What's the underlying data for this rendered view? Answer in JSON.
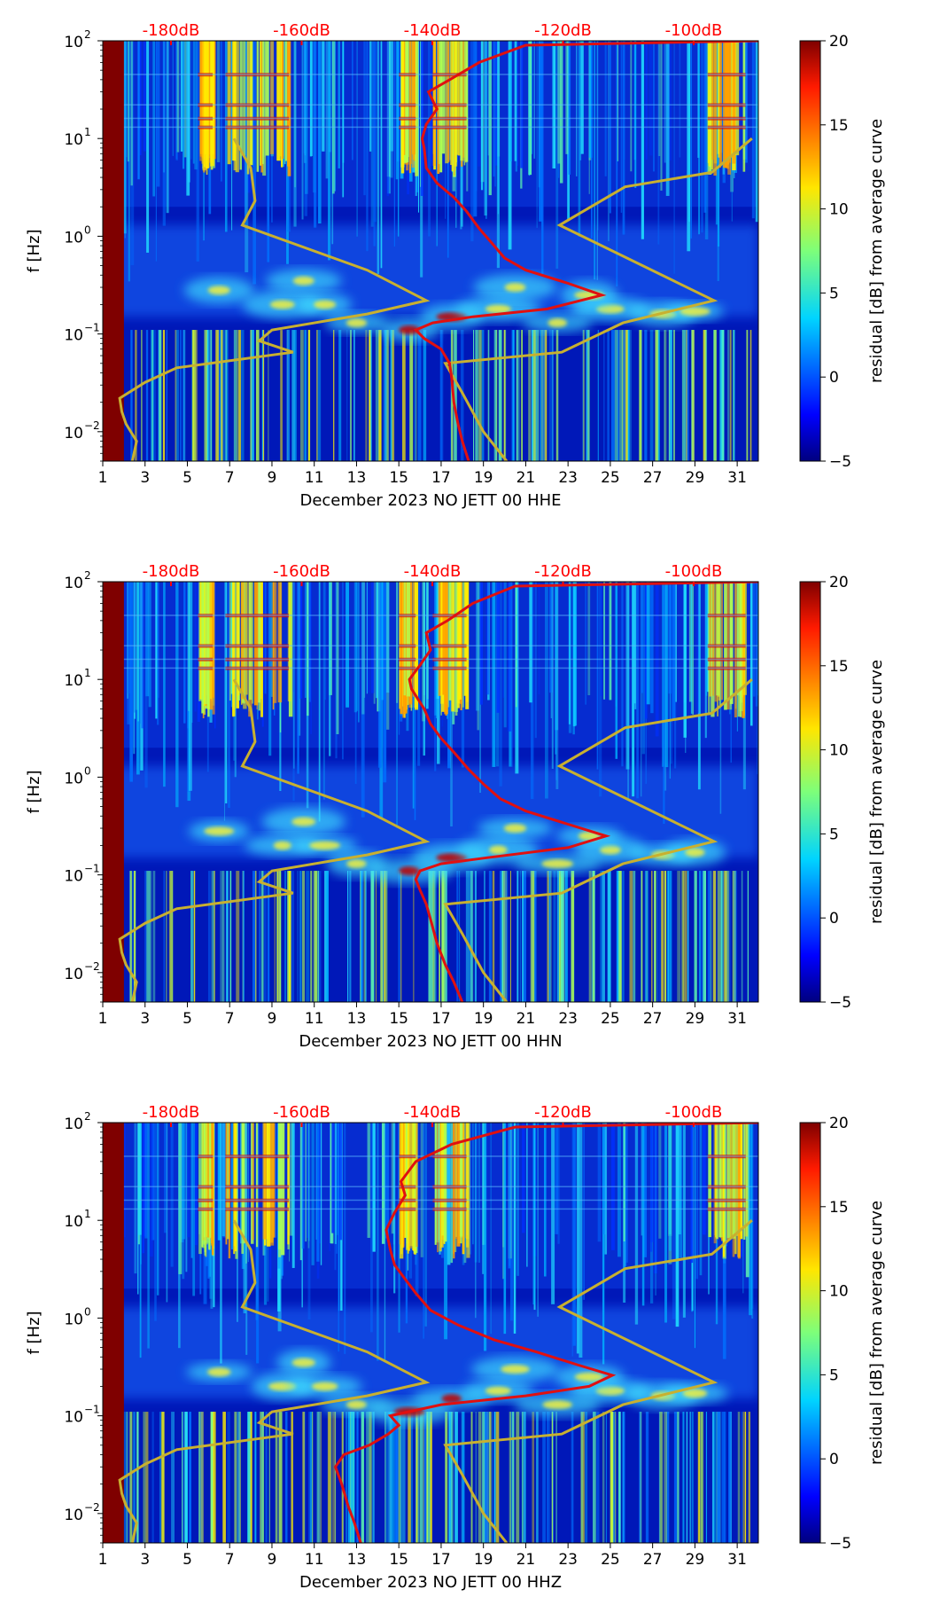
{
  "colors": {
    "db_label": "#ff0000",
    "red_curve": "#e01010",
    "model_curve": "#c8b030",
    "left_band": "#7f0000"
  },
  "chart_data": [
    {
      "type": "heatmap",
      "xlabel": "December 2023 NO JETT 00 HHE",
      "ylabel": "f [Hz]",
      "x_ticks": [
        "1",
        "3",
        "5",
        "7",
        "9",
        "11",
        "13",
        "15",
        "17",
        "19",
        "21",
        "23",
        "25",
        "27",
        "29",
        "31"
      ],
      "xlim": [
        1,
        32
      ],
      "y_ticks": [
        "10",
        "10",
        "10",
        "10",
        "10"
      ],
      "y_tick_exponents": [
        "2",
        "1",
        "0",
        "−1",
        "−2"
      ],
      "ylim": [
        0.005,
        100
      ],
      "y_scale": "log",
      "top_labels": [
        "-180dB",
        "-160dB",
        "-140dB",
        "-120dB",
        "-100dB"
      ],
      "colorbar": {
        "label": "residual [dB] from average curve",
        "ticks": [
          "20",
          "15",
          "10",
          "5",
          "0",
          "−5"
        ],
        "range": [
          -5,
          20
        ]
      },
      "red_curve": [
        [
          18.3,
          0.005
        ],
        [
          18.0,
          0.008
        ],
        [
          17.8,
          0.012
        ],
        [
          17.6,
          0.02
        ],
        [
          17.5,
          0.035
        ],
        [
          17.4,
          0.05
        ],
        [
          17.0,
          0.07
        ],
        [
          16.2,
          0.09
        ],
        [
          15.8,
          0.11
        ],
        [
          16.6,
          0.13
        ],
        [
          18.5,
          0.15
        ],
        [
          22.0,
          0.18
        ],
        [
          24.6,
          0.25
        ],
        [
          23.0,
          0.33
        ],
        [
          21.0,
          0.45
        ],
        [
          20.0,
          0.6
        ],
        [
          19.4,
          0.85
        ],
        [
          18.8,
          1.2
        ],
        [
          18.2,
          1.8
        ],
        [
          17.6,
          2.5
        ],
        [
          16.8,
          3.5
        ],
        [
          16.3,
          5
        ],
        [
          16.2,
          8
        ],
        [
          16.1,
          10
        ],
        [
          16.3,
          14
        ],
        [
          16.8,
          20
        ],
        [
          16.4,
          30
        ],
        [
          17.4,
          40
        ],
        [
          18.8,
          60
        ],
        [
          21.0,
          90
        ],
        [
          32.0,
          100
        ]
      ],
      "model_curve": [
        [
          20.1,
          0.005
        ],
        [
          19.0,
          0.01
        ],
        [
          18.0,
          0.025
        ],
        [
          17.2,
          0.05
        ],
        [
          22.7,
          0.065
        ],
        [
          25.6,
          0.13
        ],
        [
          29.9,
          0.22
        ],
        [
          22.6,
          1.3
        ],
        [
          25.7,
          3.2
        ],
        [
          29.8,
          4.5
        ],
        [
          31.7,
          10
        ]
      ],
      "model_curve_left": [
        [
          2.4,
          0.005
        ],
        [
          2.6,
          0.008
        ],
        [
          2.1,
          0.012
        ],
        [
          1.9,
          0.016
        ],
        [
          1.8,
          0.022
        ],
        [
          3.0,
          0.032
        ],
        [
          4.5,
          0.045
        ],
        [
          10.0,
          0.065
        ],
        [
          8.4,
          0.085
        ],
        [
          9.0,
          0.11
        ],
        [
          13.5,
          0.16
        ],
        [
          16.3,
          0.22
        ],
        [
          13.5,
          0.45
        ],
        [
          7.6,
          1.3
        ],
        [
          8.2,
          2.3
        ],
        [
          8.0,
          5
        ],
        [
          7.2,
          10
        ]
      ]
    },
    {
      "type": "heatmap",
      "xlabel": "December 2023 NO JETT 00 HHN",
      "ylabel": "f [Hz]",
      "x_ticks": [
        "1",
        "3",
        "5",
        "7",
        "9",
        "11",
        "13",
        "15",
        "17",
        "19",
        "21",
        "23",
        "25",
        "27",
        "29",
        "31"
      ],
      "xlim": [
        1,
        32
      ],
      "y_ticks": [
        "10",
        "10",
        "10",
        "10",
        "10"
      ],
      "y_tick_exponents": [
        "2",
        "1",
        "0",
        "−1",
        "−2"
      ],
      "ylim": [
        0.005,
        100
      ],
      "y_scale": "log",
      "top_labels": [
        "-180dB",
        "-160dB",
        "-140dB",
        "-120dB",
        "-100dB"
      ],
      "colorbar": {
        "label": "residual [dB] from average curve",
        "ticks": [
          "20",
          "15",
          "10",
          "5",
          "0",
          "−5"
        ],
        "range": [
          -5,
          20
        ]
      },
      "red_curve": [
        [
          18.0,
          0.005
        ],
        [
          17.6,
          0.008
        ],
        [
          17.2,
          0.012
        ],
        [
          16.8,
          0.02
        ],
        [
          16.5,
          0.035
        ],
        [
          16.3,
          0.05
        ],
        [
          16.0,
          0.07
        ],
        [
          15.8,
          0.09
        ],
        [
          16.0,
          0.11
        ],
        [
          17.0,
          0.13
        ],
        [
          19.2,
          0.15
        ],
        [
          23.0,
          0.19
        ],
        [
          24.8,
          0.25
        ],
        [
          23.0,
          0.33
        ],
        [
          21.0,
          0.45
        ],
        [
          19.8,
          0.6
        ],
        [
          19.0,
          0.85
        ],
        [
          18.3,
          1.2
        ],
        [
          17.6,
          1.8
        ],
        [
          17.0,
          2.5
        ],
        [
          16.5,
          3.5
        ],
        [
          16.2,
          5
        ],
        [
          15.6,
          8
        ],
        [
          15.5,
          10
        ],
        [
          16.0,
          14
        ],
        [
          16.5,
          20
        ],
        [
          16.3,
          30
        ],
        [
          17.3,
          40
        ],
        [
          18.5,
          60
        ],
        [
          20.5,
          90
        ],
        [
          32.0,
          100
        ]
      ],
      "model_curve": [
        [
          20.1,
          0.005
        ],
        [
          19.0,
          0.01
        ],
        [
          18.0,
          0.025
        ],
        [
          17.2,
          0.05
        ],
        [
          22.7,
          0.065
        ],
        [
          25.6,
          0.13
        ],
        [
          29.9,
          0.22
        ],
        [
          22.6,
          1.3
        ],
        [
          25.7,
          3.2
        ],
        [
          29.8,
          4.5
        ],
        [
          31.7,
          10
        ]
      ],
      "model_curve_left": [
        [
          2.4,
          0.005
        ],
        [
          2.6,
          0.008
        ],
        [
          2.1,
          0.012
        ],
        [
          1.9,
          0.016
        ],
        [
          1.8,
          0.022
        ],
        [
          3.0,
          0.032
        ],
        [
          4.5,
          0.045
        ],
        [
          10.0,
          0.065
        ],
        [
          8.4,
          0.085
        ],
        [
          9.0,
          0.11
        ],
        [
          13.5,
          0.16
        ],
        [
          16.3,
          0.22
        ],
        [
          13.5,
          0.45
        ],
        [
          7.6,
          1.3
        ],
        [
          8.2,
          2.3
        ],
        [
          8.0,
          5
        ],
        [
          7.2,
          10
        ]
      ]
    },
    {
      "type": "heatmap",
      "xlabel": "December 2023 NO JETT 00 HHZ",
      "ylabel": "f [Hz]",
      "x_ticks": [
        "1",
        "3",
        "5",
        "7",
        "9",
        "11",
        "13",
        "15",
        "17",
        "19",
        "21",
        "23",
        "25",
        "27",
        "29",
        "31"
      ],
      "xlim": [
        1,
        32
      ],
      "y_ticks": [
        "10",
        "10",
        "10",
        "10",
        "10"
      ],
      "y_tick_exponents": [
        "2",
        "1",
        "0",
        "−1",
        "−2"
      ],
      "ylim": [
        0.005,
        100
      ],
      "y_scale": "log",
      "top_labels": [
        "-180dB",
        "-160dB",
        "-140dB",
        "-120dB",
        "-100dB"
      ],
      "colorbar": {
        "label": "residual [dB] from average curve",
        "ticks": [
          "20",
          "15",
          "10",
          "5",
          "0",
          "−5"
        ],
        "range": [
          -5,
          20
        ]
      },
      "red_curve": [
        [
          13.2,
          0.005
        ],
        [
          12.9,
          0.008
        ],
        [
          12.6,
          0.012
        ],
        [
          12.3,
          0.02
        ],
        [
          12.0,
          0.03
        ],
        [
          12.4,
          0.04
        ],
        [
          13.6,
          0.05
        ],
        [
          14.5,
          0.065
        ],
        [
          15.0,
          0.08
        ],
        [
          14.6,
          0.1
        ],
        [
          17.0,
          0.13
        ],
        [
          21.0,
          0.16
        ],
        [
          24.0,
          0.2
        ],
        [
          25.1,
          0.26
        ],
        [
          23.5,
          0.33
        ],
        [
          21.5,
          0.45
        ],
        [
          19.5,
          0.6
        ],
        [
          17.8,
          0.85
        ],
        [
          16.5,
          1.2
        ],
        [
          15.8,
          1.8
        ],
        [
          15.3,
          2.5
        ],
        [
          14.8,
          3.5
        ],
        [
          14.6,
          5
        ],
        [
          14.4,
          8
        ],
        [
          14.8,
          12
        ],
        [
          15.3,
          18
        ],
        [
          15.1,
          25
        ],
        [
          15.8,
          40
        ],
        [
          17.5,
          60
        ],
        [
          20.5,
          90
        ],
        [
          32.0,
          100
        ]
      ],
      "model_curve": [
        [
          20.1,
          0.005
        ],
        [
          19.0,
          0.01
        ],
        [
          18.0,
          0.025
        ],
        [
          17.2,
          0.05
        ],
        [
          22.7,
          0.065
        ],
        [
          25.6,
          0.13
        ],
        [
          29.9,
          0.22
        ],
        [
          22.6,
          1.3
        ],
        [
          25.7,
          3.2
        ],
        [
          29.8,
          4.5
        ],
        [
          31.7,
          10
        ]
      ],
      "model_curve_left": [
        [
          2.4,
          0.005
        ],
        [
          2.6,
          0.008
        ],
        [
          2.1,
          0.012
        ],
        [
          1.9,
          0.016
        ],
        [
          1.8,
          0.022
        ],
        [
          3.0,
          0.032
        ],
        [
          4.5,
          0.045
        ],
        [
          10.0,
          0.065
        ],
        [
          8.4,
          0.085
        ],
        [
          9.0,
          0.11
        ],
        [
          13.5,
          0.16
        ],
        [
          16.3,
          0.22
        ],
        [
          13.5,
          0.45
        ],
        [
          7.6,
          1.3
        ],
        [
          8.2,
          2.3
        ],
        [
          8.0,
          5
        ],
        [
          7.2,
          10
        ]
      ]
    }
  ]
}
